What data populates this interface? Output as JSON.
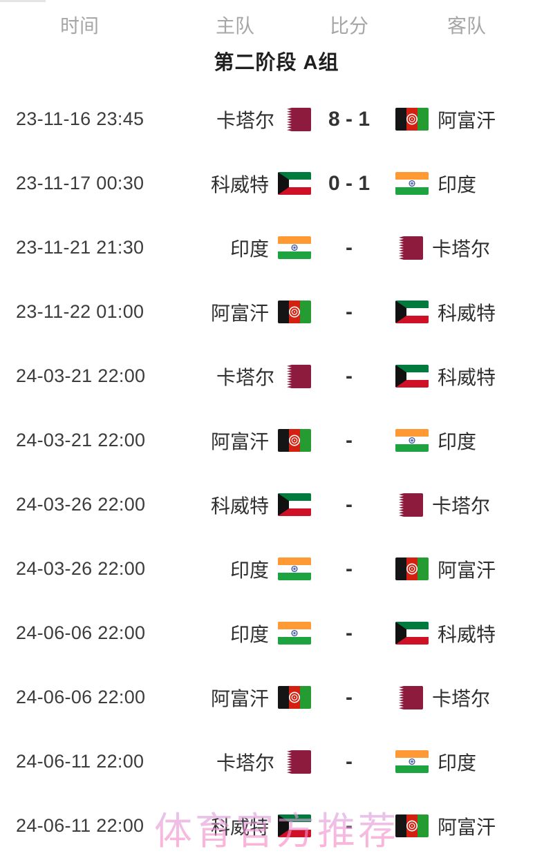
{
  "table": {
    "columns": {
      "time": "时间",
      "home": "主队",
      "score": "比分",
      "away": "客队"
    },
    "group_title": "第二阶段 A组",
    "rows": [
      {
        "time": "23-11-16 23:45",
        "home": "卡塔尔",
        "home_flag": "qatar",
        "score": "8 - 1",
        "away": "阿富汗",
        "away_flag": "afghanistan"
      },
      {
        "time": "23-11-17 00:30",
        "home": "科威特",
        "home_flag": "kuwait",
        "score": "0 - 1",
        "away": "印度",
        "away_flag": "india"
      },
      {
        "time": "23-11-21 21:30",
        "home": "印度",
        "home_flag": "india",
        "score": "-",
        "away": "卡塔尔",
        "away_flag": "qatar"
      },
      {
        "time": "23-11-22 01:00",
        "home": "阿富汗",
        "home_flag": "afghanistan",
        "score": "-",
        "away": "科威特",
        "away_flag": "kuwait"
      },
      {
        "time": "24-03-21 22:00",
        "home": "卡塔尔",
        "home_flag": "qatar",
        "score": "-",
        "away": "科威特",
        "away_flag": "kuwait"
      },
      {
        "time": "24-03-21 22:00",
        "home": "阿富汗",
        "home_flag": "afghanistan",
        "score": "-",
        "away": "印度",
        "away_flag": "india"
      },
      {
        "time": "24-03-26 22:00",
        "home": "科威特",
        "home_flag": "kuwait",
        "score": "-",
        "away": "卡塔尔",
        "away_flag": "qatar"
      },
      {
        "time": "24-03-26 22:00",
        "home": "印度",
        "home_flag": "india",
        "score": "-",
        "away": "阿富汗",
        "away_flag": "afghanistan"
      },
      {
        "time": "24-06-06 22:00",
        "home": "印度",
        "home_flag": "india",
        "score": "-",
        "away": "科威特",
        "away_flag": "kuwait"
      },
      {
        "time": "24-06-06 22:00",
        "home": "阿富汗",
        "home_flag": "afghanistan",
        "score": "-",
        "away": "卡塔尔",
        "away_flag": "qatar"
      },
      {
        "time": "24-06-11 22:00",
        "home": "卡塔尔",
        "home_flag": "qatar",
        "score": "-",
        "away": "印度",
        "away_flag": "india"
      },
      {
        "time": "24-06-11 22:00",
        "home": "科威特",
        "home_flag": "kuwait",
        "score": "-",
        "away": "阿富汗",
        "away_flag": "afghanistan"
      }
    ]
  },
  "watermark": "体育官方推荐",
  "colors": {
    "header_gray": "#a6a6a6",
    "title_black": "#1f1f1f",
    "text_dark": "#3c3c3c",
    "watermark_pink": "#ef93d2",
    "qatar_maroon": "#8d1b3d",
    "kuwait_green": "#007a3d",
    "kuwait_red": "#ce1126",
    "india_saffron": "#ff9933",
    "india_green": "#1da33f",
    "afghan_black": "#151515",
    "afghan_red": "#d32011",
    "afghan_green": "#249c31"
  }
}
